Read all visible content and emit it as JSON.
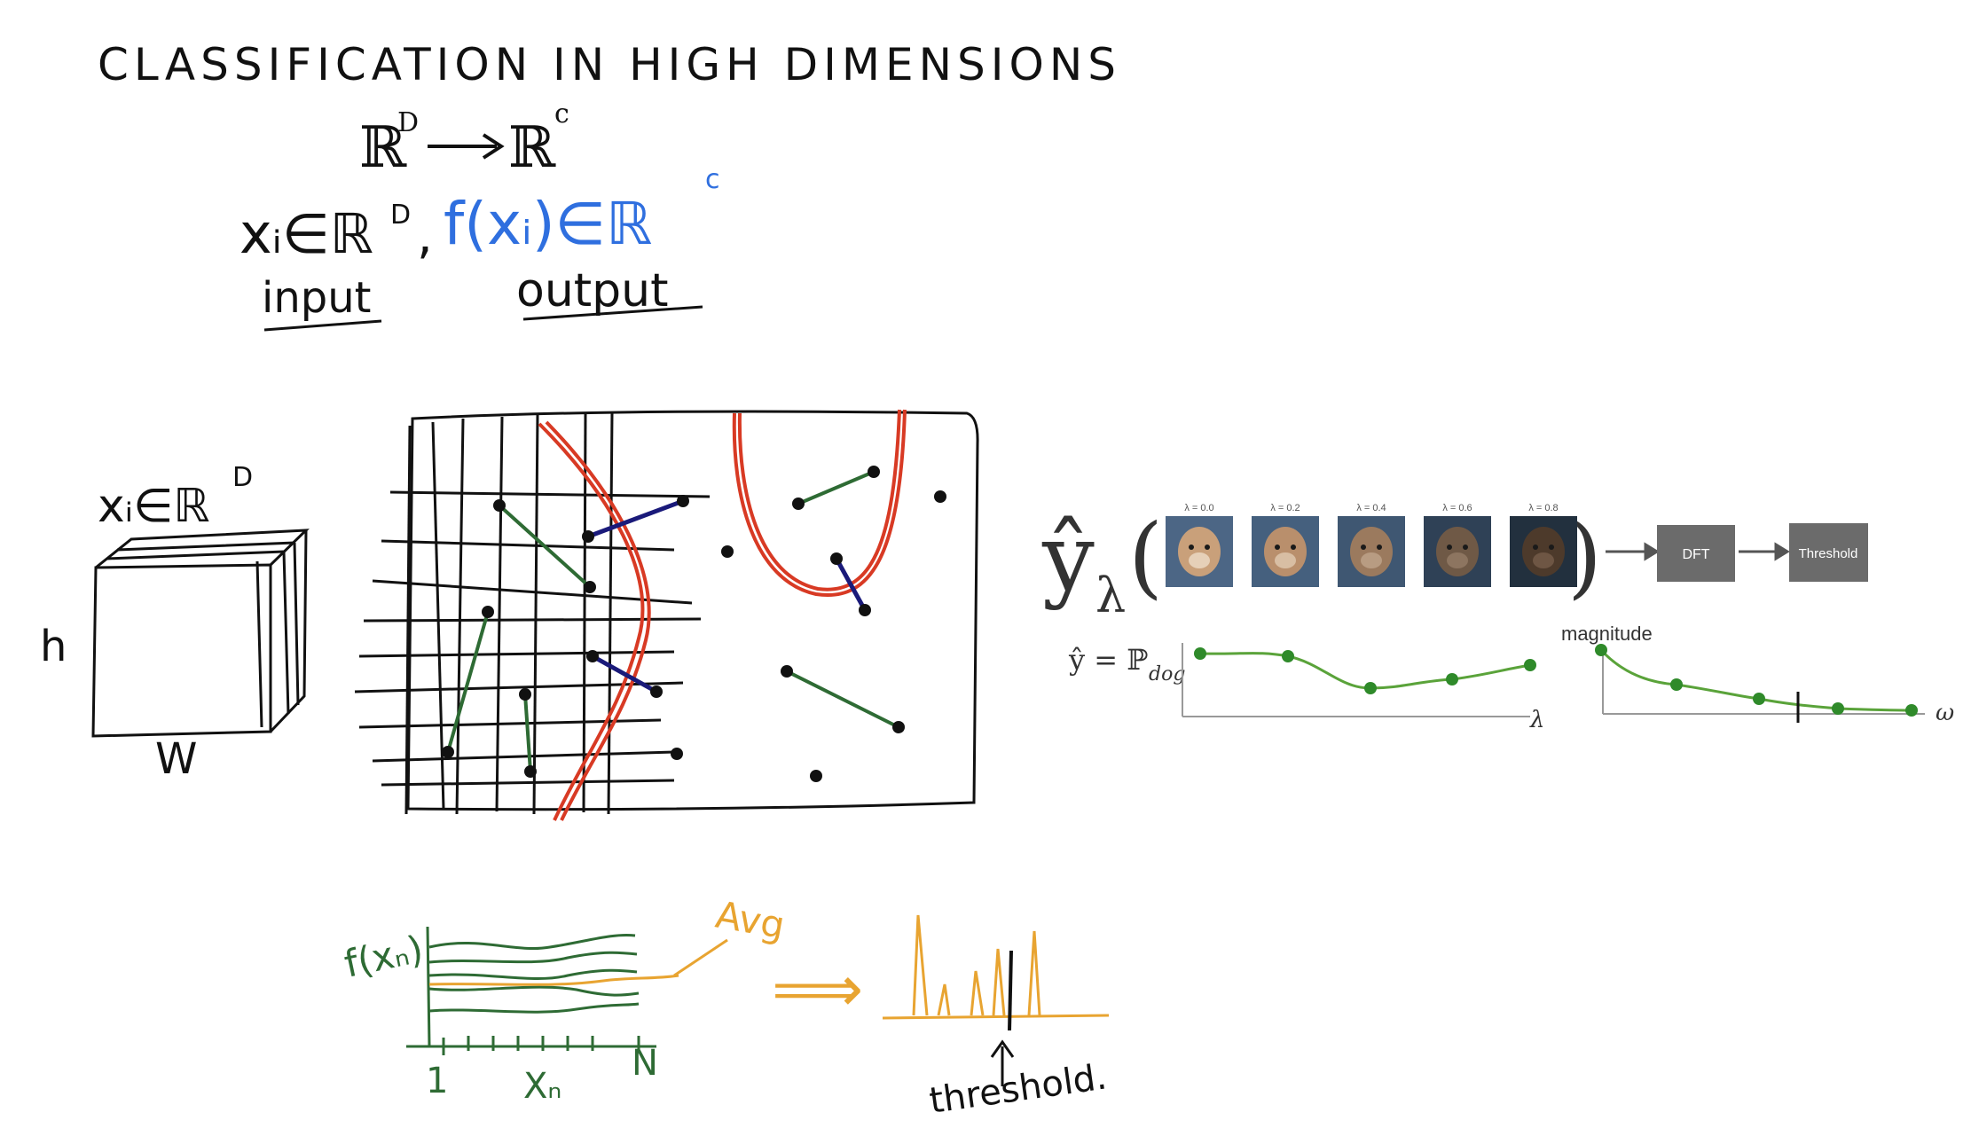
{
  "title": "CLASSIFICATION IN HIGH DIMENSIONS",
  "mapping": {
    "domain": "ℝ",
    "domain_sup": "D",
    "codomain": "ℝ",
    "codomain_sup": "c"
  },
  "io_line": {
    "input_expr": "xᵢ∈ℝ",
    "input_sup": "D",
    "comma": ",",
    "output_expr": "f(xᵢ)∈ℝ",
    "output_sup": "c",
    "input_label": "input",
    "output_label": "output"
  },
  "cube": {
    "label": "xᵢ∈ℝ",
    "label_sup": "D",
    "height_label": "h",
    "width_label": "W"
  },
  "pipeline": {
    "y_hat": "ŷ",
    "y_sub": "λ",
    "open_paren": "(",
    "close_paren": ")",
    "lambda_labels": [
      "λ = 0.0",
      "λ = 0.2",
      "λ = 0.4",
      "λ = 0.6",
      "λ = 0.8"
    ],
    "dft_label": "DFT",
    "threshold_label": "Threshold"
  },
  "curve_left": {
    "ylabel": "ŷ = ℙ",
    "ylabel_sub": "dog",
    "xlabel": "λ"
  },
  "curve_right": {
    "ylabel": "magnitude",
    "xlabel": "ω"
  },
  "sketch_bottom": {
    "ylabel": "f(xₙ)",
    "avg_label": "Avg",
    "x_start": "1",
    "x_mid": "Xₙ",
    "x_end": "N",
    "arrow": "⟹",
    "threshold_label": "threshold."
  },
  "colors": {
    "ink": "#111111",
    "blue_ink": "#2f6fdf",
    "green_ink": "#2e6b34",
    "red_ink": "#d83a24",
    "navy_ink": "#1a1a7a",
    "orange_ink": "#e8a431",
    "figure_green": "#5aa33a",
    "box_gray": "#6b6b6b"
  }
}
